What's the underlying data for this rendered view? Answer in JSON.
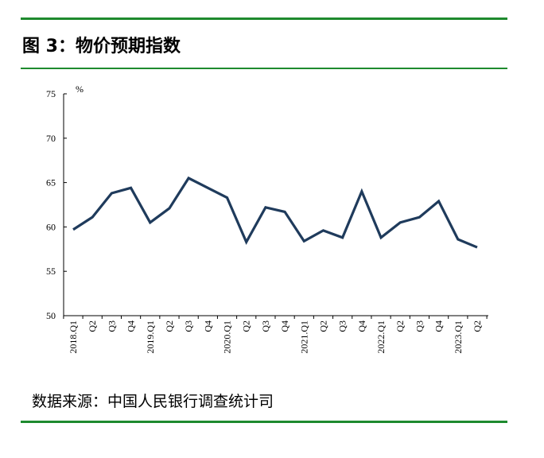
{
  "figure": {
    "title": "图 3：物价预期指数",
    "source": "数据来源：中国人民银行调查统计司"
  },
  "colors": {
    "rule": "#1e8a2e",
    "series": "#1f3b5c",
    "axis": "#000000"
  },
  "chart_data": {
    "type": "line",
    "title": "",
    "xlabel": "",
    "ylabel": "%",
    "ylim": [
      50,
      75
    ],
    "yticks": [
      50,
      55,
      60,
      65,
      70,
      75
    ],
    "grid": false,
    "legend": "none",
    "categories": [
      "2018.Q1",
      "Q2",
      "Q3",
      "Q4",
      "2019.Q1",
      "Q2",
      "Q3",
      "Q4",
      "2020.Q1",
      "Q2",
      "Q3",
      "Q4",
      "2021.Q1",
      "Q2",
      "Q3",
      "Q4",
      "2022.Q1",
      "Q2",
      "Q3",
      "Q4",
      "2023.Q1",
      "Q2"
    ],
    "series": [
      {
        "values": [
          59.7,
          61.1,
          63.8,
          64.4,
          60.5,
          62.1,
          65.5,
          64.4,
          63.3,
          58.3,
          62.2,
          61.7,
          58.4,
          59.6,
          58.8,
          64.0,
          58.8,
          60.5,
          61.1,
          62.9,
          58.6,
          57.7
        ]
      }
    ]
  }
}
